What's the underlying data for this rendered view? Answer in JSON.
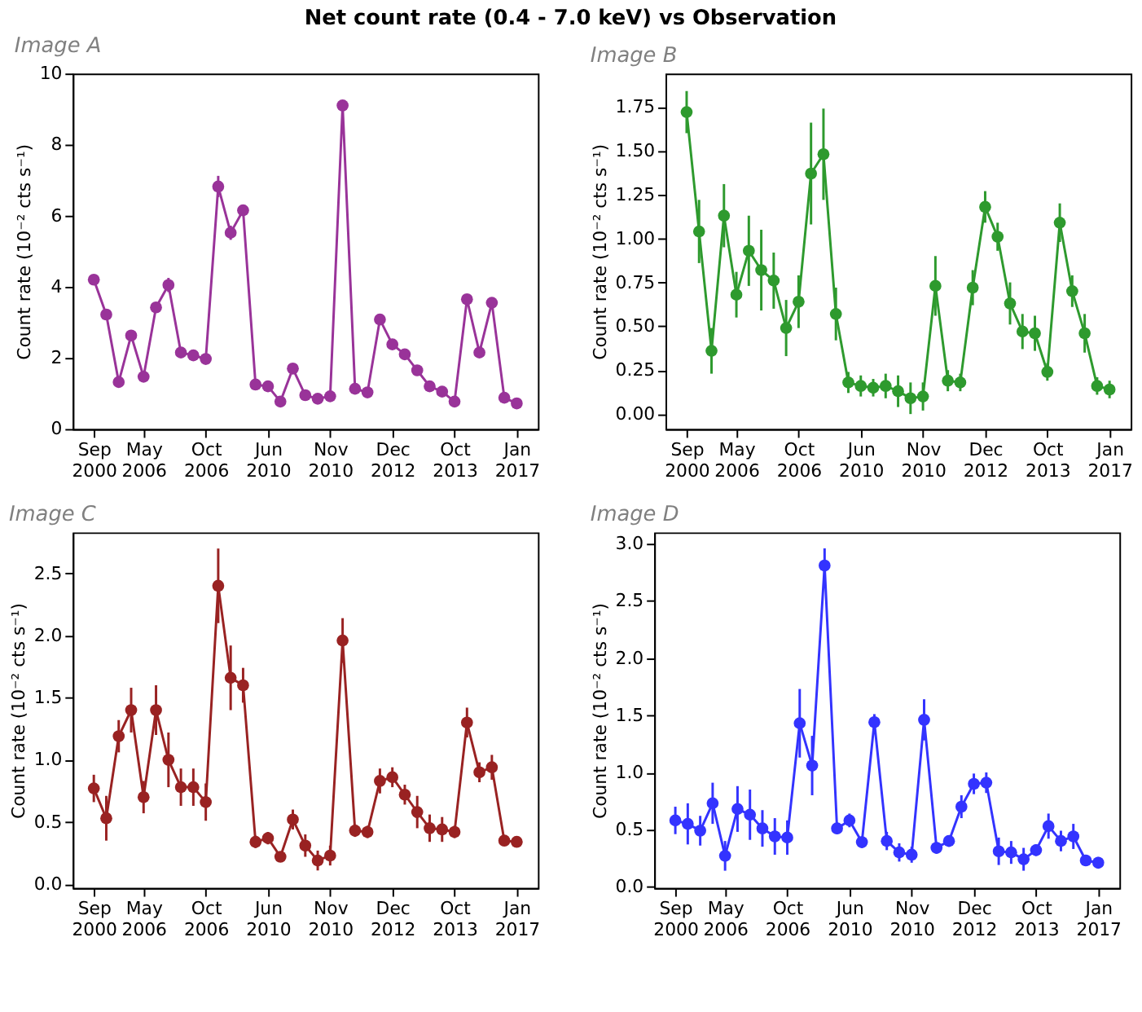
{
  "chart_data": [
    {
      "type": "line",
      "title": "Image A",
      "annotations": [
        "Net count rate (0.4 - 7.0 keV) vs Observation"
      ],
      "ylabel": "Count rate (10⁻² cts s⁻¹)",
      "marker": "circle",
      "grid": false,
      "categories": [
        "Sep 2000",
        null,
        null,
        null,
        "May 2006",
        null,
        null,
        null,
        null,
        "Oct 2006",
        null,
        null,
        null,
        null,
        "Jun 2010",
        null,
        null,
        null,
        null,
        "Nov 2010",
        null,
        null,
        null,
        null,
        "Dec 2012",
        null,
        null,
        null,
        null,
        "Oct 2013",
        null,
        null,
        null,
        null,
        "Jan 2017"
      ],
      "ylim": [
        0,
        10
      ],
      "yticks": [
        0,
        2,
        4,
        6,
        8,
        10
      ],
      "series": [
        {
          "color": "#993399",
          "values": [
            4.2,
            3.22,
            1.32,
            2.63,
            1.47,
            3.42,
            4.05,
            2.15,
            2.07,
            1.97,
            6.82,
            5.52,
            6.15,
            1.25,
            1.2,
            0.77,
            1.7,
            0.95,
            0.85,
            0.92,
            9.1,
            1.13,
            1.03,
            3.08,
            2.38,
            2.1,
            1.65,
            1.2,
            1.05,
            0.77,
            3.65,
            2.15,
            3.55,
            0.88,
            0.72
          ],
          "errors": [
            0.1,
            0.1,
            0.1,
            0.1,
            0.1,
            0.1,
            0.2,
            0.1,
            0.1,
            0.1,
            0.3,
            0.2,
            0.1,
            0.1,
            0.1,
            0.1,
            0.1,
            0.1,
            0.1,
            0.1,
            0.1,
            0.1,
            0.1,
            0.1,
            0.1,
            0.1,
            0.1,
            0.1,
            0.1,
            0.1,
            0.1,
            0.1,
            0.1,
            0.1,
            0.1
          ]
        }
      ]
    },
    {
      "type": "line",
      "title": "Image B",
      "ylabel": "Count rate (10⁻² cts s⁻¹)",
      "marker": "circle",
      "grid": false,
      "categories": [
        "Sep 2000",
        null,
        null,
        null,
        "May 2006",
        null,
        null,
        null,
        null,
        "Oct 2006",
        null,
        null,
        null,
        null,
        "Jun 2010",
        null,
        null,
        null,
        null,
        "Nov 2010",
        null,
        null,
        null,
        null,
        "Dec 2012",
        null,
        null,
        null,
        null,
        "Oct 2013",
        null,
        null,
        null,
        null,
        "Jan 2017"
      ],
      "ylim": [
        -0.085,
        1.94
      ],
      "yticks": [
        {
          "value": 0,
          "label": "0.00"
        },
        {
          "value": 0.25,
          "label": "0.25"
        },
        {
          "value": 0.5,
          "label": "0.50"
        },
        {
          "value": 0.75,
          "label": "0.75"
        },
        {
          "value": 1,
          "label": "1.00"
        },
        {
          "value": 1.25,
          "label": "1.25"
        },
        {
          "value": 1.5,
          "label": "1.50"
        },
        {
          "value": 1.75,
          "label": "1.75"
        }
      ],
      "series": [
        {
          "color": "#2e9a2e",
          "values": [
            1.72,
            1.04,
            0.36,
            1.13,
            0.68,
            0.93,
            0.82,
            0.76,
            0.49,
            0.64,
            1.37,
            1.48,
            0.57,
            0.18,
            0.16,
            0.15,
            0.16,
            0.13,
            0.09,
            0.1,
            0.73,
            0.19,
            0.18,
            0.72,
            1.18,
            1.01,
            0.63,
            0.47,
            0.46,
            0.24,
            1.09,
            0.7,
            0.46,
            0.16,
            0.14
          ],
          "errors": [
            0.12,
            0.18,
            0.13,
            0.18,
            0.13,
            0.2,
            0.23,
            0.16,
            0.16,
            0.15,
            0.29,
            0.26,
            0.15,
            0.06,
            0.06,
            0.05,
            0.07,
            0.09,
            0.09,
            0.08,
            0.17,
            0.06,
            0.05,
            0.1,
            0.09,
            0.08,
            0.12,
            0.1,
            0.1,
            0.05,
            0.11,
            0.09,
            0.11,
            0.05,
            0.05
          ]
        }
      ]
    },
    {
      "type": "line",
      "title": "Image C",
      "ylabel": "Count rate (10⁻² cts s⁻¹)",
      "marker": "circle",
      "grid": false,
      "categories": [
        "Sep 2000",
        null,
        null,
        null,
        "May 2006",
        null,
        null,
        null,
        null,
        "Oct 2006",
        null,
        null,
        null,
        null,
        "Jun 2010",
        null,
        null,
        null,
        null,
        "Nov 2010",
        null,
        null,
        null,
        null,
        "Dec 2012",
        null,
        null,
        null,
        null,
        "Oct 2013",
        null,
        null,
        null,
        null,
        "Jan 2017"
      ],
      "ylim": [
        -0.03,
        2.83
      ],
      "yticks": [
        {
          "value": 0,
          "label": "0.0"
        },
        {
          "value": 0.5,
          "label": "0.5"
        },
        {
          "value": 1,
          "label": "1.0"
        },
        {
          "value": 1.5,
          "label": "1.5"
        },
        {
          "value": 2,
          "label": "2.0"
        },
        {
          "value": 2.5,
          "label": "2.5"
        }
      ],
      "series": [
        {
          "color": "#992222",
          "values": [
            0.77,
            0.53,
            1.19,
            1.4,
            0.7,
            1.4,
            1.0,
            0.78,
            0.78,
            0.66,
            2.4,
            1.66,
            1.6,
            0.34,
            0.37,
            0.22,
            0.52,
            0.31,
            0.19,
            0.23,
            1.96,
            0.43,
            0.42,
            0.83,
            0.86,
            0.72,
            0.58,
            0.45,
            0.44,
            0.42,
            1.3,
            0.9,
            0.94,
            0.35,
            0.34
          ],
          "errors": [
            0.11,
            0.18,
            0.13,
            0.18,
            0.13,
            0.2,
            0.22,
            0.15,
            0.15,
            0.15,
            0.3,
            0.26,
            0.14,
            0.05,
            0.05,
            0.04,
            0.08,
            0.09,
            0.08,
            0.08,
            0.18,
            0.05,
            0.05,
            0.1,
            0.08,
            0.08,
            0.13,
            0.11,
            0.1,
            0.05,
            0.12,
            0.08,
            0.1,
            0.04,
            0.04
          ]
        }
      ]
    },
    {
      "type": "line",
      "title": "Image D",
      "ylabel": "Count rate (10⁻² cts s⁻¹)",
      "marker": "circle",
      "grid": false,
      "categories": [
        "Sep 2000",
        null,
        null,
        null,
        "May 2006",
        null,
        null,
        null,
        null,
        "Oct 2006",
        null,
        null,
        null,
        null,
        "Jun 2010",
        null,
        null,
        null,
        null,
        "Nov 2010",
        null,
        null,
        null,
        null,
        "Dec 2012",
        null,
        null,
        null,
        null,
        "Oct 2013",
        null,
        null,
        null,
        null,
        "Jan 2017"
      ],
      "ylim": [
        -0.01,
        3.1
      ],
      "yticks": [
        {
          "value": 0,
          "label": "0.0"
        },
        {
          "value": 0.5,
          "label": "0.5"
        },
        {
          "value": 1,
          "label": "1.0"
        },
        {
          "value": 1.5,
          "label": "1.5"
        },
        {
          "value": 2,
          "label": "2.0"
        },
        {
          "value": 2.5,
          "label": "2.5"
        },
        {
          "value": 3,
          "label": "3.0"
        }
      ],
      "series": [
        {
          "color": "#3333ff",
          "values": [
            0.58,
            0.55,
            0.49,
            0.73,
            0.27,
            0.68,
            0.63,
            0.51,
            0.44,
            0.43,
            1.43,
            1.06,
            2.81,
            0.51,
            0.58,
            0.39,
            1.44,
            0.4,
            0.3,
            0.28,
            1.46,
            0.34,
            0.4,
            0.7,
            0.9,
            0.91,
            0.31,
            0.3,
            0.24,
            0.32,
            0.53,
            0.4,
            0.44,
            0.23,
            0.21
          ],
          "errors": [
            0.12,
            0.18,
            0.13,
            0.18,
            0.13,
            0.2,
            0.22,
            0.16,
            0.16,
            0.15,
            0.3,
            0.26,
            0.15,
            0.05,
            0.06,
            0.05,
            0.07,
            0.08,
            0.08,
            0.07,
            0.18,
            0.05,
            0.05,
            0.1,
            0.09,
            0.09,
            0.12,
            0.1,
            0.1,
            0.05,
            0.11,
            0.09,
            0.11,
            0.05,
            0.05
          ]
        }
      ]
    }
  ]
}
